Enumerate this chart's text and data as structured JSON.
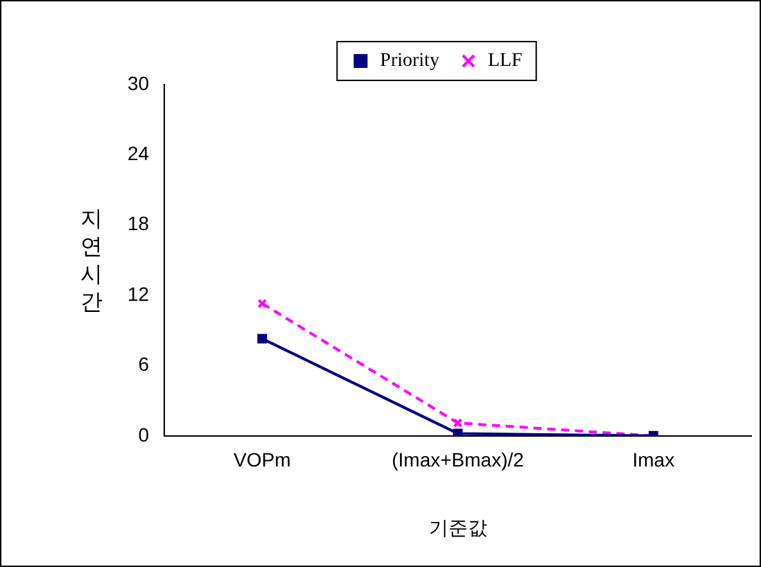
{
  "chart_data": {
    "type": "line",
    "xlabel": "기준값",
    "ylabel": "지연시간",
    "categories": [
      "VOPm",
      "(Imax+Bmax)/2",
      "Imax"
    ],
    "series": [
      {
        "name": "Priority",
        "color": "#000080",
        "values": [
          8.3,
          0.2,
          0
        ],
        "marker": "square",
        "line_style": "solid"
      },
      {
        "name": "LLF",
        "color": "#ff00ff",
        "values": [
          11.3,
          1.1,
          0
        ],
        "marker": "cross",
        "line_style": "dashed"
      }
    ],
    "ylim": [
      0,
      30
    ],
    "yticks": [
      0,
      6,
      12,
      18,
      24,
      30
    ],
    "grid": false,
    "legend": "top"
  }
}
